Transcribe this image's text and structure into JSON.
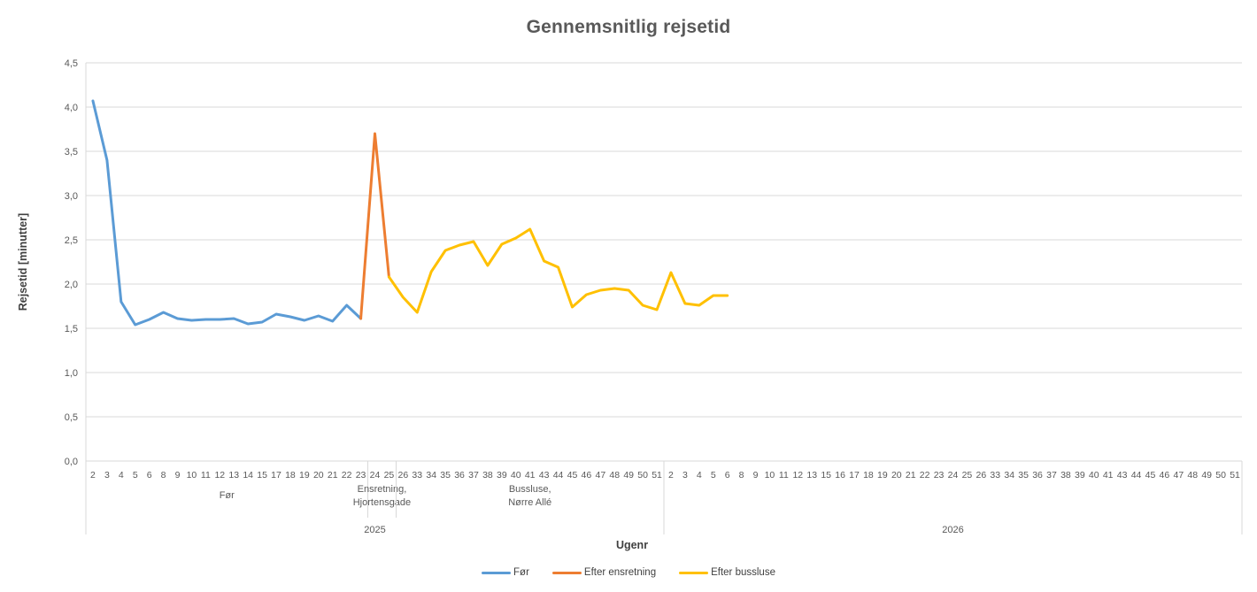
{
  "chart_data": {
    "type": "line",
    "title": "Gennemsnitlig rejsetid",
    "ylabel": "Rejsetid [minutter]",
    "xlabel": "Ugenr",
    "ylim": [
      0,
      4.5
    ],
    "y_ticks": [
      "0,0",
      "0,5",
      "1,0",
      "1,5",
      "2,0",
      "2,5",
      "3,0",
      "3,5",
      "4,0",
      "4,5"
    ],
    "grid": true,
    "legend_position": "bottom",
    "colors": {
      "grid": "#D9D9D9",
      "tick_text": "#595959",
      "title_text": "#595959",
      "axis_title_text": "#404040"
    },
    "x_axis": {
      "years": [
        {
          "label": "2025",
          "groups": [
            {
              "label": [
                "Før"
              ],
              "weeks": [
                2,
                3,
                4,
                5,
                6,
                8,
                9,
                10,
                11,
                12,
                13,
                14,
                15,
                17,
                18,
                19,
                20,
                21,
                22,
                23
              ]
            },
            {
              "label": [
                "Ensretning,",
                "Hjortensgade"
              ],
              "weeks": [
                24,
                25
              ]
            },
            {
              "label": [
                "Bussluse,",
                "Nørre Allé"
              ],
              "weeks": [
                26,
                33,
                34,
                35,
                36,
                37,
                38,
                39,
                40,
                41,
                43,
                44,
                45,
                46,
                47,
                48,
                49,
                50,
                51
              ]
            }
          ]
        },
        {
          "label": "2026",
          "groups": [
            {
              "label": [],
              "weeks": [
                2,
                3,
                4,
                5,
                6,
                8,
                9,
                10,
                11,
                12,
                13,
                15,
                16,
                17,
                18,
                19,
                20,
                21,
                22,
                23,
                24,
                25,
                26,
                33,
                34,
                35,
                36,
                37,
                38,
                39,
                40,
                41,
                43,
                44,
                45,
                46,
                47,
                48,
                49,
                50,
                51
              ]
            }
          ]
        }
      ]
    },
    "series": [
      {
        "name": "Før",
        "color": "#5B9BD5",
        "start_index": 0,
        "values": [
          4.07,
          3.4,
          1.8,
          1.54,
          1.6,
          1.68,
          1.61,
          1.59,
          1.6,
          1.6,
          1.61,
          1.55,
          1.57,
          1.66,
          1.63,
          1.59,
          1.64,
          1.58,
          1.76,
          1.61
        ]
      },
      {
        "name": "Efter ensretning",
        "color": "#ED7D31",
        "start_index": 19,
        "values": [
          1.61,
          3.7,
          2.08
        ]
      },
      {
        "name": "Efter bussluse",
        "color": "#FFC000",
        "start_index": 21,
        "values": [
          2.08,
          1.85,
          1.68,
          2.14,
          2.38,
          2.44,
          2.48,
          2.21,
          2.45,
          2.52,
          2.62,
          2.26,
          2.19,
          1.74,
          1.88,
          1.93,
          1.95,
          1.93,
          1.76,
          1.71,
          2.13,
          1.78,
          1.76,
          1.87,
          1.87
        ]
      }
    ]
  }
}
